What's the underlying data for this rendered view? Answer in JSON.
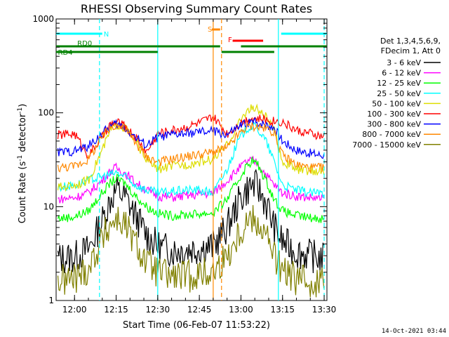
{
  "chart_data": {
    "type": "line",
    "title": "RHESSI Observing Summary Count Rates",
    "xlabel": "Start Time (06-Feb-07 11:53:22)",
    "ylabel_main": "Count Rate (s",
    "ylabel_sup1": "-1",
    "ylabel_mid": " detector",
    "ylabel_sup2": "-1",
    "ylabel_end": ")",
    "y_scale": "log",
    "ylim": [
      1,
      1000
    ],
    "xlim": [
      "11:53:22",
      "13:31:00"
    ],
    "x_ticks": [
      "12:00",
      "12:15",
      "12:30",
      "12:45",
      "13:00",
      "13:15",
      "13:30"
    ],
    "y_ticks": [
      "1",
      "10",
      "100",
      "1000"
    ],
    "timestamp": "14-Oct-2021 03:44",
    "legend": {
      "header1": "Det 1,3,4,5,6,9,",
      "header2": "FDecim 1, Att 0",
      "entries": [
        {
          "label": "3 - 6 keV",
          "color": "#000000"
        },
        {
          "label": "6 - 12 keV",
          "color": "#ff00ff"
        },
        {
          "label": "12 - 25 keV",
          "color": "#00ff00"
        },
        {
          "label": "25 - 50 keV",
          "color": "#00ffff"
        },
        {
          "label": "50 - 100 keV",
          "color": "#dddd00"
        },
        {
          "label": "100 - 300 keV",
          "color": "#ff0000"
        },
        {
          "label": "300 - 800 keV",
          "color": "#0000ff"
        },
        {
          "label": "800 - 7000 keV",
          "color": "#ff8800"
        },
        {
          "label": "7000 - 15000 keV",
          "color": "#808000"
        }
      ]
    },
    "flag_bars": [
      {
        "label": "N",
        "color": "#00ffff",
        "segments": [
          [
            "11:53:22",
            "12:10:00"
          ],
          [
            "13:14:30",
            "13:31:00"
          ]
        ]
      },
      {
        "label": "S",
        "color": "#ff8800",
        "segments": [
          [
            "12:49:30",
            "12:52:30"
          ]
        ]
      },
      {
        "label": "F",
        "color": "#ff0000",
        "segments": [
          [
            "12:57:00",
            "13:08:00"
          ]
        ]
      },
      {
        "label": "RD0",
        "color": "#008000",
        "segments": [
          [
            "11:53:22",
            "12:30:00"
          ],
          [
            "12:30:00",
            "12:52:30"
          ],
          [
            "13:00:00",
            "13:31:00"
          ]
        ]
      },
      {
        "label": "RD4",
        "color": "#008000",
        "segments": [
          [
            "11:53:22",
            "12:30:00"
          ],
          [
            "12:53:00",
            "13:12:00"
          ]
        ]
      }
    ],
    "event_lines": [
      {
        "time": "12:09:00",
        "color": "#00ffff",
        "style": "dashed"
      },
      {
        "time": "12:30:00",
        "color": "#00ffff",
        "style": "solid"
      },
      {
        "time": "12:50:00",
        "color": "#ff8800",
        "style": "solid"
      },
      {
        "time": "12:53:00",
        "color": "#ff8800",
        "style": "dashed"
      },
      {
        "time": "13:13:30",
        "color": "#00ffff",
        "style": "solid"
      },
      {
        "time": "13:30:00",
        "color": "#00ffff",
        "style": "dashed"
      }
    ],
    "series": [
      {
        "name": "3 - 6 keV",
        "color": "#000000",
        "x": [
          "11:54",
          "12:00",
          "12:05",
          "12:10",
          "12:13",
          "12:15",
          "12:18",
          "12:22",
          "12:26",
          "12:30",
          "12:35",
          "12:40",
          "12:45",
          "12:50",
          "12:55",
          "12:59",
          "13:02",
          "13:04",
          "13:06",
          "13:09",
          "13:12",
          "13:15",
          "13:20",
          "13:25",
          "13:30"
        ],
        "values": [
          2.8,
          2.9,
          3.5,
          7,
          12,
          15,
          13,
          8,
          5,
          3.8,
          3.4,
          3.5,
          3.6,
          3.8,
          6,
          11,
          15,
          17,
          16,
          11,
          6,
          4.2,
          3.3,
          3,
          2.8
        ]
      },
      {
        "name": "6 - 12 keV",
        "color": "#ff00ff",
        "x": [
          "11:54",
          "12:00",
          "12:05",
          "12:10",
          "12:13",
          "12:15",
          "12:18",
          "12:22",
          "12:26",
          "12:30",
          "12:35",
          "12:40",
          "12:45",
          "12:50",
          "12:55",
          "12:59",
          "13:02",
          "13:04",
          "13:06",
          "13:09",
          "13:12",
          "13:15",
          "13:20",
          "13:25",
          "13:30"
        ],
        "values": [
          12,
          12.5,
          14,
          19,
          24,
          26,
          23,
          18,
          15,
          13,
          12.5,
          13,
          13.5,
          14,
          19,
          25,
          30,
          31,
          29,
          22,
          17,
          14,
          13,
          12.5,
          12
        ]
      },
      {
        "name": "12 - 25 keV",
        "color": "#00ff00",
        "x": [
          "11:54",
          "12:00",
          "12:05",
          "12:10",
          "12:13",
          "12:15",
          "12:18",
          "12:22",
          "12:26",
          "12:30",
          "12:35",
          "12:40",
          "12:45",
          "12:50",
          "12:55",
          "12:59",
          "13:02",
          "13:04",
          "13:06",
          "13:09",
          "13:12",
          "13:15",
          "13:20",
          "13:25",
          "13:30"
        ],
        "values": [
          7.5,
          7.8,
          9,
          14,
          18,
          20,
          18,
          13,
          10,
          8.5,
          8,
          8.2,
          8.4,
          8.6,
          12,
          19,
          27,
          31,
          28,
          19,
          12,
          9,
          8,
          7.6,
          7.5
        ]
      },
      {
        "name": "25 - 50 keV",
        "color": "#00ffff",
        "x": [
          "11:54",
          "12:00",
          "12:05",
          "12:10",
          "12:13",
          "12:15",
          "12:18",
          "12:22",
          "12:26",
          "12:30",
          "12:35",
          "12:40",
          "12:45",
          "12:50",
          "12:55",
          "12:59",
          "13:02",
          "13:04",
          "13:06",
          "13:09",
          "13:12",
          "13:15",
          "13:20",
          "13:25",
          "13:30"
        ],
        "values": [
          16,
          17,
          19,
          21,
          22,
          23,
          21,
          17,
          15,
          14,
          14.5,
          15,
          15,
          14,
          25,
          50,
          68,
          72,
          68,
          50,
          30,
          17,
          15,
          14,
          14
        ]
      },
      {
        "name": "50 - 100 keV",
        "color": "#dddd00",
        "x": [
          "11:54",
          "12:00",
          "12:05",
          "12:10",
          "12:13",
          "12:15",
          "12:18",
          "12:22",
          "12:26",
          "12:30",
          "12:35",
          "12:40",
          "12:45",
          "12:50",
          "12:55",
          "12:59",
          "13:02",
          "13:04",
          "13:06",
          "13:09",
          "13:12",
          "13:15",
          "13:20",
          "13:25",
          "13:30"
        ],
        "values": [
          16,
          17,
          19,
          40,
          65,
          75,
          70,
          50,
          32,
          25,
          27,
          28,
          30,
          32,
          45,
          75,
          105,
          112,
          108,
          90,
          65,
          30,
          25,
          24,
          24
        ]
      },
      {
        "name": "100 - 300 keV",
        "color": "#ff0000",
        "x": [
          "11:54",
          "12:00",
          "12:05",
          "12:10",
          "12:13",
          "12:15",
          "12:18",
          "12:22",
          "12:26",
          "12:30",
          "12:35",
          "12:40",
          "12:45",
          "12:50",
          "12:55",
          "12:59",
          "13:02",
          "13:04",
          "13:06",
          "13:09",
          "13:12",
          "13:15",
          "13:20",
          "13:25",
          "13:30"
        ],
        "values": [
          58,
          60,
          35,
          55,
          75,
          80,
          72,
          55,
          38,
          60,
          65,
          70,
          78,
          90,
          60,
          75,
          85,
          88,
          86,
          84,
          82,
          80,
          65,
          60,
          55
        ]
      },
      {
        "name": "300 - 800 keV",
        "color": "#0000ff",
        "x": [
          "11:54",
          "12:00",
          "12:05",
          "12:10",
          "12:13",
          "12:15",
          "12:18",
          "12:22",
          "12:26",
          "12:30",
          "12:35",
          "12:40",
          "12:45",
          "12:50",
          "12:55",
          "12:59",
          "13:02",
          "13:04",
          "13:06",
          "13:09",
          "13:12",
          "13:15",
          "13:20",
          "13:25",
          "13:30"
        ],
        "values": [
          38,
          39,
          44,
          60,
          72,
          76,
          70,
          55,
          45,
          55,
          58,
          60,
          62,
          64,
          58,
          70,
          78,
          80,
          79,
          75,
          70,
          50,
          40,
          37,
          35
        ]
      },
      {
        "name": "800 - 7000 keV",
        "color": "#ff8800",
        "x": [
          "11:54",
          "12:00",
          "12:05",
          "12:10",
          "12:13",
          "12:15",
          "12:18",
          "12:22",
          "12:26",
          "12:30",
          "12:35",
          "12:40",
          "12:45",
          "12:50",
          "12:55",
          "12:59",
          "13:02",
          "13:04",
          "13:06",
          "13:09",
          "13:12",
          "13:15",
          "13:20",
          "13:25",
          "13:30"
        ],
        "values": [
          26,
          27,
          32,
          55,
          70,
          75,
          68,
          48,
          34,
          30,
          32,
          34,
          36,
          38,
          42,
          58,
          70,
          72,
          71,
          68,
          62,
          35,
          28,
          26,
          26
        ]
      },
      {
        "name": "7000 - 15000 keV",
        "color": "#808000",
        "x": [
          "11:54",
          "12:00",
          "12:05",
          "12:10",
          "12:13",
          "12:15",
          "12:18",
          "12:22",
          "12:26",
          "12:30",
          "12:35",
          "12:40",
          "12:45",
          "12:50",
          "12:55",
          "12:59",
          "13:02",
          "13:04",
          "13:06",
          "13:09",
          "13:12",
          "13:15",
          "13:20",
          "13:25",
          "13:30"
        ],
        "values": [
          1.6,
          1.7,
          2.2,
          4.5,
          6.5,
          7.5,
          6.5,
          4,
          2.5,
          2,
          1.8,
          1.8,
          1.9,
          2,
          3,
          5,
          7,
          7.5,
          7,
          5,
          3,
          2,
          1.7,
          1.6,
          1.6
        ]
      }
    ]
  }
}
